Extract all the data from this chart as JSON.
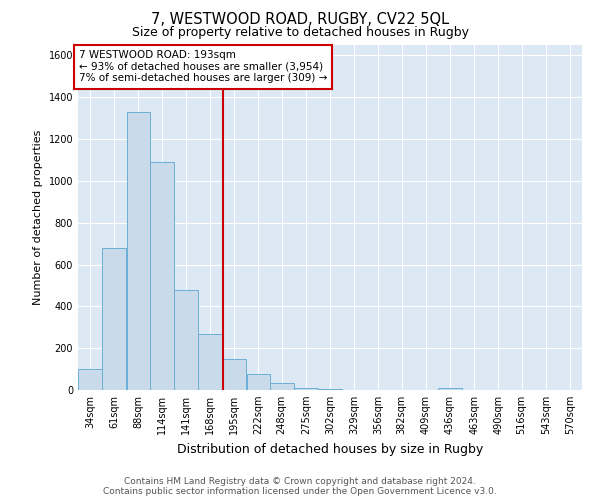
{
  "title_main": "7, WESTWOOD ROAD, RUGBY, CV22 5QL",
  "title_sub": "Size of property relative to detached houses in Rugby",
  "xlabel": "Distribution of detached houses by size in Rugby",
  "ylabel": "Number of detached properties",
  "annotation_line1": "7 WESTWOOD ROAD: 193sqm",
  "annotation_line2": "← 93% of detached houses are smaller (3,954)",
  "annotation_line3": "7% of semi-detached houses are larger (309) →",
  "property_size": 193,
  "bar_color": "#c9daea",
  "bar_edge_color": "#6aaed6",
  "vline_color": "#cc0000",
  "vline_x": 195.5,
  "categories": [
    "34sqm",
    "61sqm",
    "88sqm",
    "114sqm",
    "141sqm",
    "168sqm",
    "195sqm",
    "222sqm",
    "248sqm",
    "275sqm",
    "302sqm",
    "329sqm",
    "356sqm",
    "382sqm",
    "409sqm",
    "436sqm",
    "463sqm",
    "490sqm",
    "516sqm",
    "543sqm",
    "570sqm"
  ],
  "bin_edges": [
    34,
    61,
    88,
    114,
    141,
    168,
    195,
    222,
    248,
    275,
    302,
    329,
    356,
    382,
    409,
    436,
    463,
    490,
    516,
    543,
    570
  ],
  "bin_width": 27,
  "values": [
    100,
    680,
    1330,
    1090,
    480,
    270,
    150,
    75,
    35,
    10,
    5,
    2,
    1,
    1,
    0,
    10,
    0,
    0,
    0,
    0,
    0
  ],
  "ylim": [
    0,
    1650
  ],
  "yticks": [
    0,
    200,
    400,
    600,
    800,
    1000,
    1200,
    1400,
    1600
  ],
  "background_color": "#ffffff",
  "plot_bg_color": "#dce9f5",
  "footer_line1": "Contains HM Land Registry data © Crown copyright and database right 2024.",
  "footer_line2": "Contains public sector information licensed under the Open Government Licence v3.0.",
  "annotation_box_color": "#ffffff",
  "annotation_box_edge": "#cc0000",
  "title_main_fontsize": 10.5,
  "title_sub_fontsize": 9,
  "xlabel_fontsize": 9,
  "ylabel_fontsize": 8,
  "footer_fontsize": 6.5,
  "annotation_fontsize": 7.5,
  "tick_fontsize": 7
}
